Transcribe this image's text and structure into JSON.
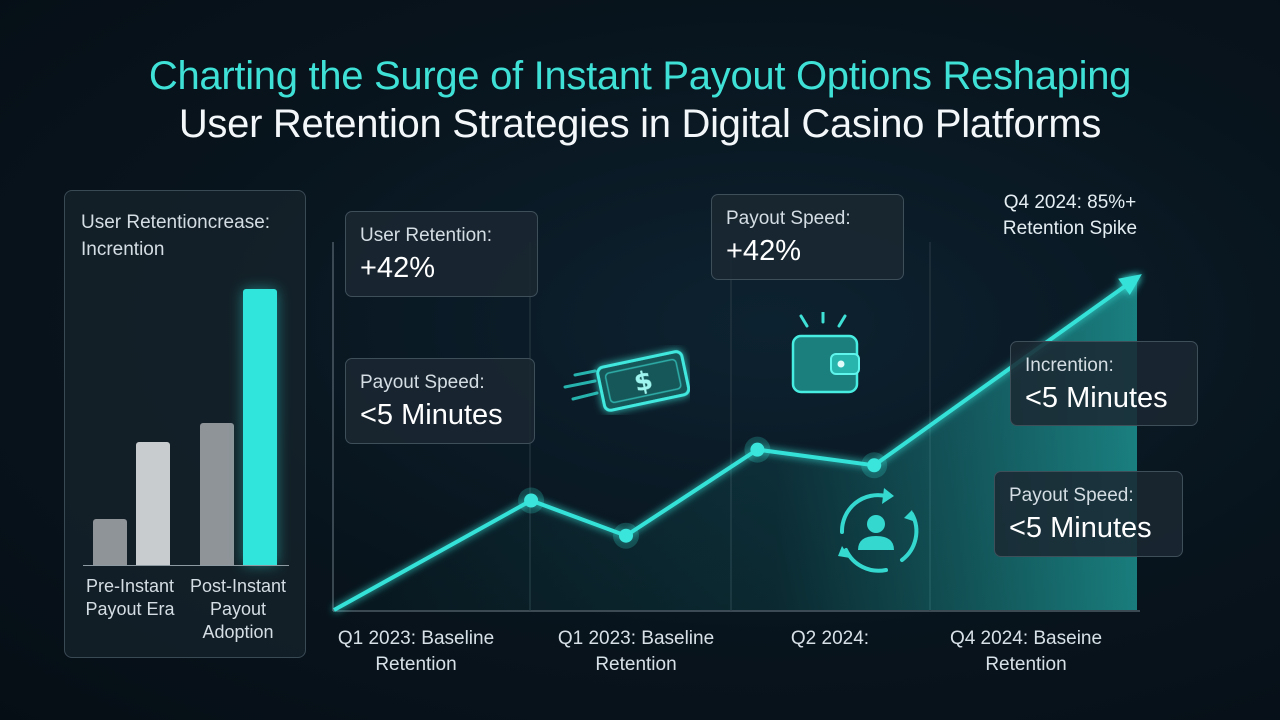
{
  "title_line1": "Charting the Surge of Instant Payout Options Reshaping",
  "title_line2": "User Retention Strategies in Digital Casino Platforms",
  "colors": {
    "accent": "#3fe0d6",
    "bar_dark": "#8f9499",
    "bar_light": "#c9cccf",
    "bar_accent": "#30e6dc"
  },
  "chart_data": [
    {
      "type": "bar",
      "title": "User Retentioncrease: Incrention",
      "categories": [
        "Pre-Instant Payout Era",
        "Post-Instant Payout Adoption"
      ],
      "series": [
        {
          "values": [
            12,
            37
          ]
        },
        {
          "values": [
            32,
            72
          ]
        }
      ],
      "ylim": [
        0,
        72
      ]
    },
    {
      "type": "area",
      "x_ticks": [
        "Q1 2023: Baseline Retention",
        "Q1 2023: Baseline Retention",
        "Q2 2024:",
        "Q4 2024: Baseine Retention"
      ],
      "points": [
        {
          "x": 0.0,
          "y": 0
        },
        {
          "x": 0.54,
          "y": 28
        },
        {
          "x": 0.8,
          "y": 19
        },
        {
          "x": 1.16,
          "y": 41
        },
        {
          "x": 1.48,
          "y": 37
        },
        {
          "x": 2.2,
          "y": 85
        }
      ],
      "ylim": [
        0,
        90
      ],
      "annotation": "Q4 2024: 85%+ Retention Spike"
    }
  ],
  "callouts": [
    {
      "label": "User Retention:",
      "value": "+42%"
    },
    {
      "label": "Payout Speed:",
      "value": "<5 Minutes"
    },
    {
      "label": "Payout Speed:",
      "value": "+42%"
    },
    {
      "label": "Incrention:",
      "value": "<5 Minutes"
    },
    {
      "label": "Payout Speed:",
      "value": "<5 Minutes"
    }
  ],
  "icons": [
    "money-icon",
    "wallet-icon",
    "user-cycle-icon"
  ]
}
